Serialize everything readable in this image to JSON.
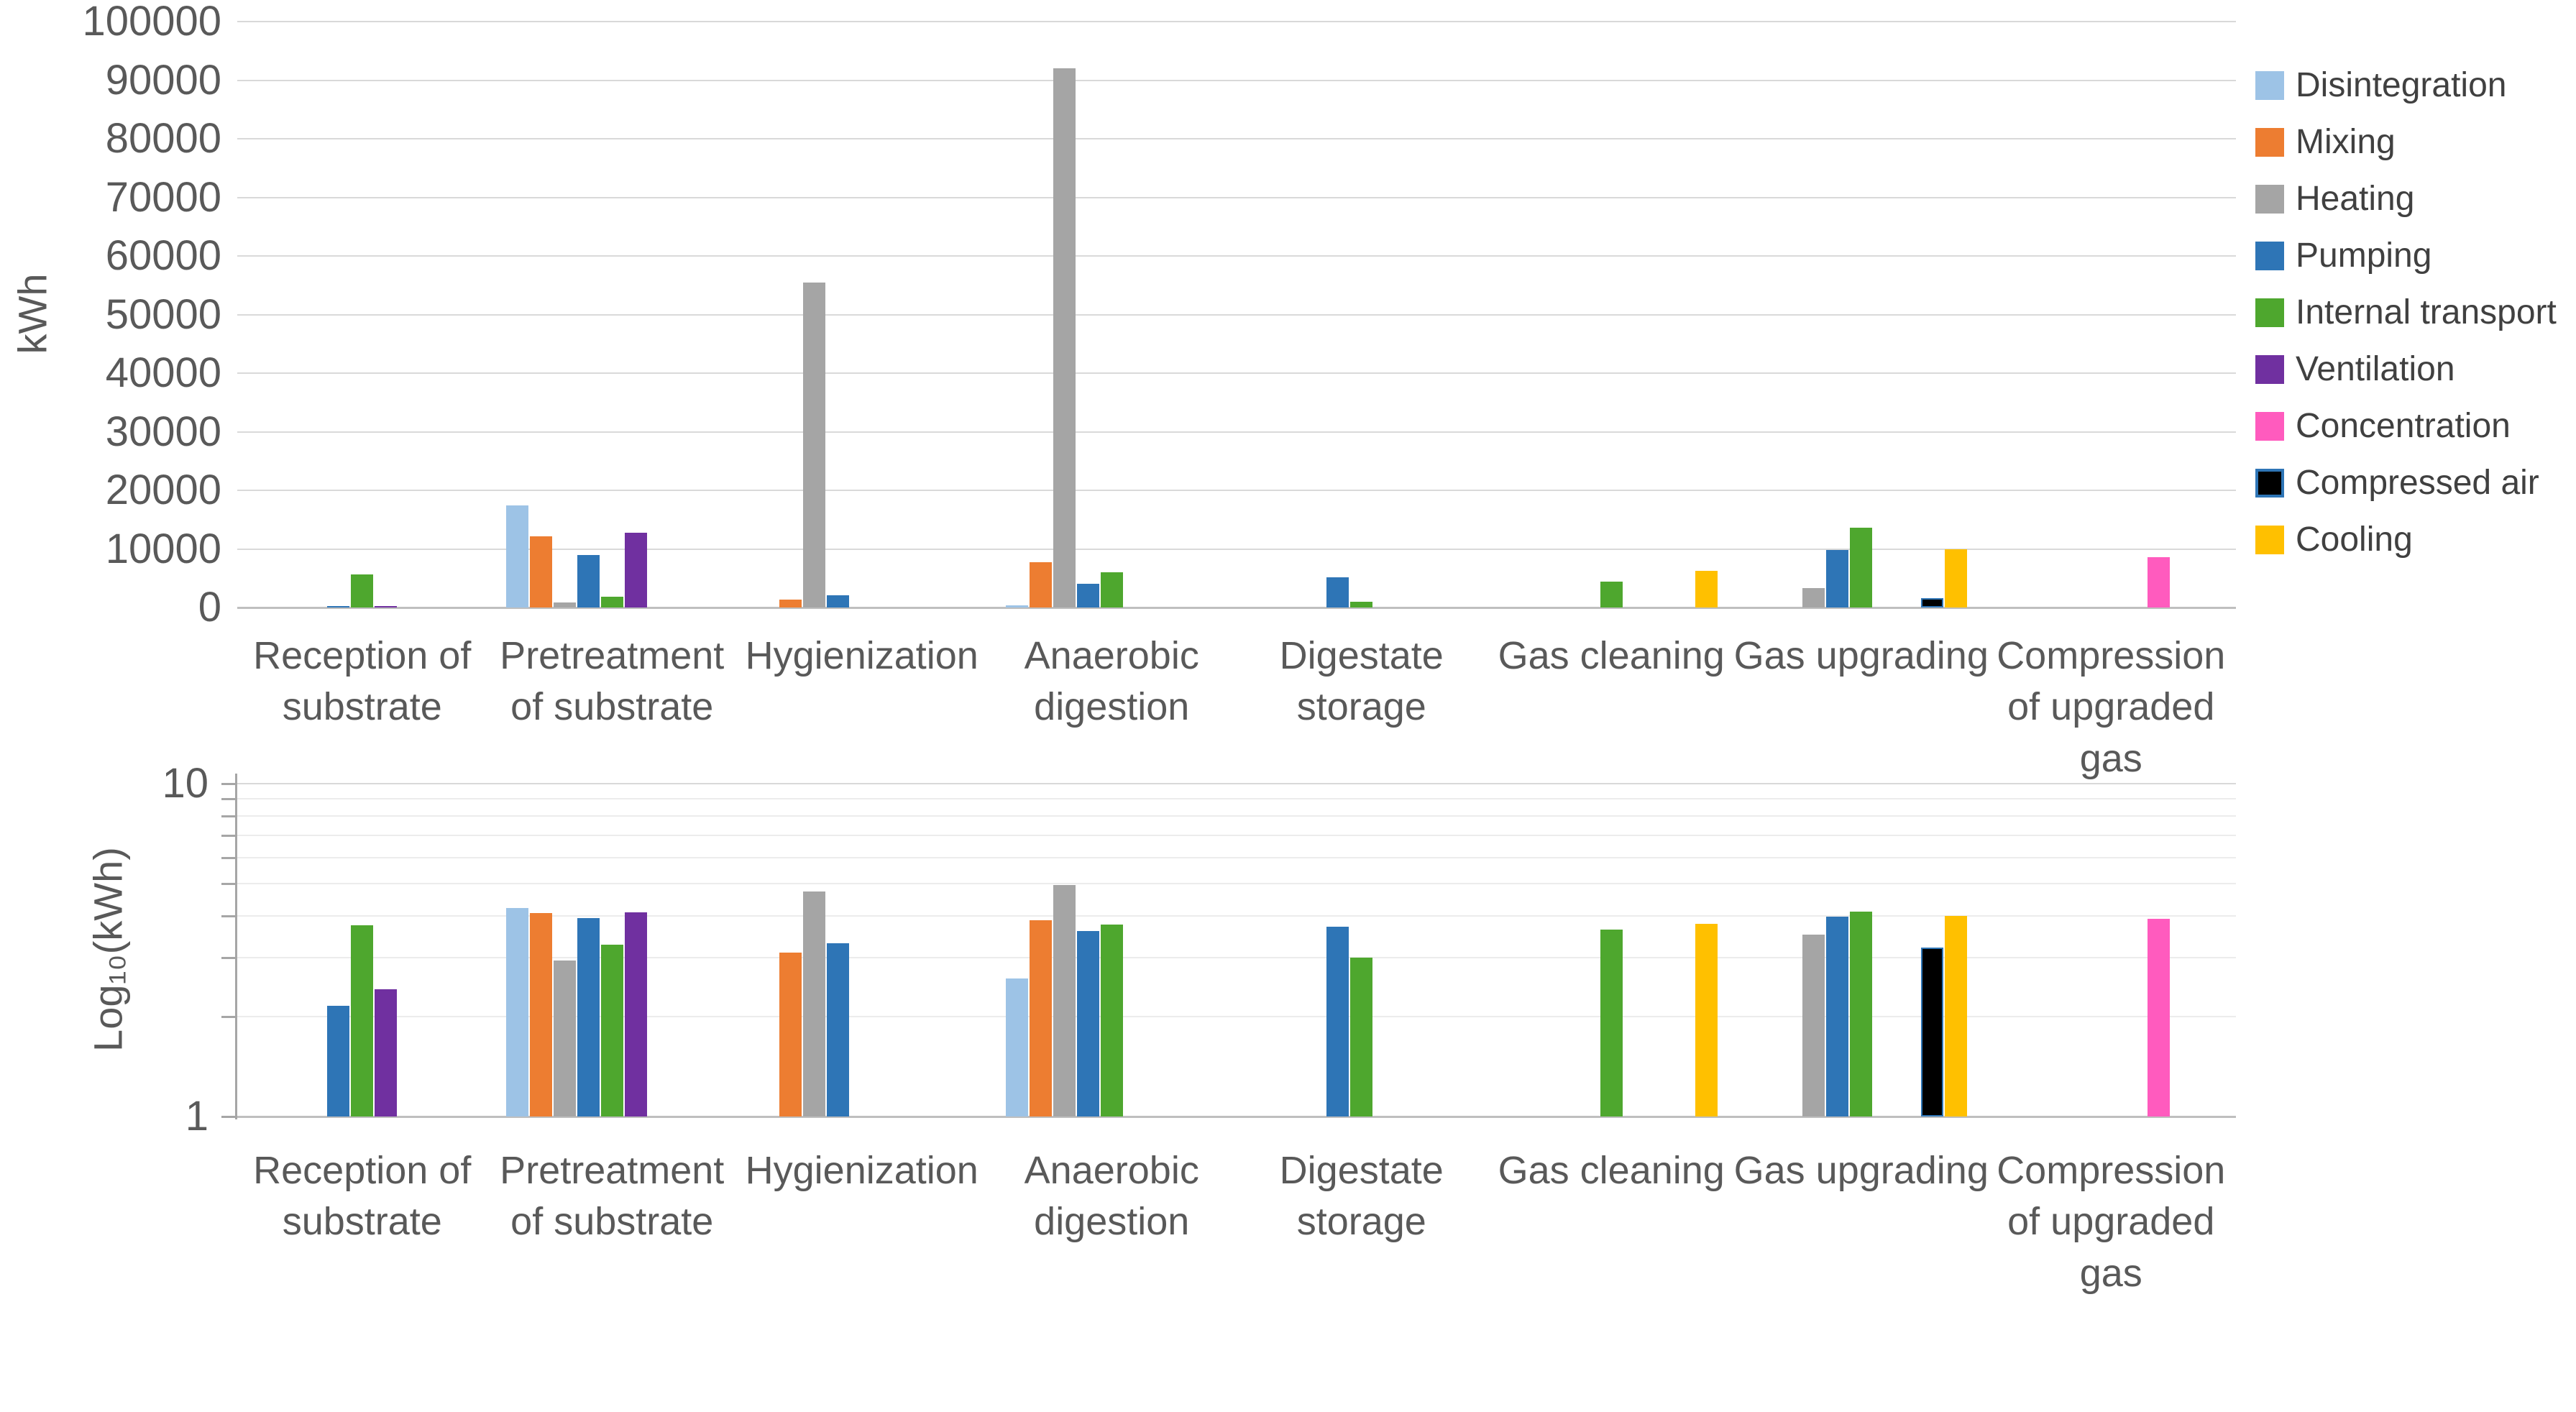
{
  "chart_data": [
    {
      "type": "bar",
      "title": "",
      "ylabel": "kWh",
      "ylim": [
        0,
        100000
      ],
      "yticks": [
        0,
        10000,
        20000,
        30000,
        40000,
        50000,
        60000,
        70000,
        80000,
        90000,
        100000
      ],
      "grid": "horizontal",
      "legend_position": "right",
      "categories": [
        "Reception of\nsubstrate",
        "Pretreatment\nof substrate",
        "Hygienization",
        "Anaerobic\ndigestion",
        "Digestate\nstorage",
        "Gas cleaning",
        "Gas upgrading",
        "Compression\nof upgraded\ngas"
      ],
      "series": [
        {
          "name": "Disintegration",
          "color": "#9DC3E6",
          "values": [
            null,
            17400,
            null,
            400,
            null,
            null,
            null,
            null
          ]
        },
        {
          "name": "Mixing",
          "color": "#ED7D31",
          "values": [
            null,
            12200,
            1300,
            7700,
            null,
            null,
            null,
            null
          ]
        },
        {
          "name": "Heating",
          "color": "#A5A5A5",
          "values": [
            null,
            870,
            55500,
            92000,
            null,
            null,
            3300,
            null
          ]
        },
        {
          "name": "Pumping",
          "color": "#2E75B6",
          "values": [
            140,
            9000,
            2100,
            4100,
            5200,
            null,
            9800,
            null
          ]
        },
        {
          "name": "Internal transport",
          "color": "#4EA72E",
          "values": [
            5600,
            1900,
            null,
            6000,
            1000,
            4400,
            13600,
            null
          ]
        },
        {
          "name": "Ventilation",
          "color": "#7030A0",
          "values": [
            260,
            12800,
            null,
            null,
            null,
            null,
            null,
            null
          ]
        },
        {
          "name": "Concentration",
          "color": "#FF5BBE",
          "values": [
            null,
            null,
            null,
            null,
            null,
            null,
            null,
            8600
          ]
        },
        {
          "name": "Compressed air",
          "color": "#000000",
          "values": [
            null,
            null,
            null,
            null,
            null,
            null,
            1650,
            null
          ]
        },
        {
          "name": "Cooling",
          "color": "#FFC000",
          "values": [
            null,
            null,
            null,
            null,
            null,
            6200,
            10000,
            null
          ]
        }
      ]
    },
    {
      "type": "bar",
      "title": "",
      "ylabel": "Log₁₀(kWh)",
      "yscale": "log",
      "ylim": [
        1,
        10
      ],
      "yticks_labeled": [
        1,
        10
      ],
      "yticks_minor": [
        2,
        3,
        4,
        5,
        6,
        7,
        8,
        9
      ],
      "grid": "horizontal",
      "categories": [
        "Reception of\nsubstrate",
        "Pretreatment\nof substrate",
        "Hygienization",
        "Anaerobic\ndigestion",
        "Digestate\nstorage",
        "Gas cleaning",
        "Gas upgrading",
        "Compression\nof upgraded\ngas"
      ],
      "series": [
        {
          "name": "Disintegration",
          "color": "#9DC3E6",
          "values": [
            null,
            4.24,
            null,
            2.6,
            null,
            null,
            null,
            null
          ]
        },
        {
          "name": "Mixing",
          "color": "#ED7D31",
          "values": [
            null,
            4.09,
            3.11,
            3.89,
            null,
            null,
            null,
            null
          ]
        },
        {
          "name": "Heating",
          "color": "#A5A5A5",
          "values": [
            null,
            2.94,
            4.74,
            4.96,
            null,
            null,
            3.52,
            null
          ]
        },
        {
          "name": "Pumping",
          "color": "#2E75B6",
          "values": [
            2.15,
            3.95,
            3.32,
            3.61,
            3.72,
            null,
            3.99,
            null
          ]
        },
        {
          "name": "Internal transport",
          "color": "#4EA72E",
          "values": [
            3.75,
            3.28,
            null,
            3.78,
            3.0,
            3.64,
            4.13,
            null
          ]
        },
        {
          "name": "Ventilation",
          "color": "#7030A0",
          "values": [
            2.41,
            4.11,
            null,
            null,
            null,
            null,
            null,
            null
          ]
        },
        {
          "name": "Concentration",
          "color": "#FF5BBE",
          "values": [
            null,
            null,
            null,
            null,
            null,
            null,
            null,
            3.93
          ]
        },
        {
          "name": "Compressed air",
          "color": "#000000",
          "values": [
            null,
            null,
            null,
            null,
            null,
            null,
            3.22,
            null
          ]
        },
        {
          "name": "Cooling",
          "color": "#FFC000",
          "values": [
            null,
            null,
            null,
            null,
            null,
            3.79,
            4.0,
            null
          ]
        }
      ]
    }
  ]
}
